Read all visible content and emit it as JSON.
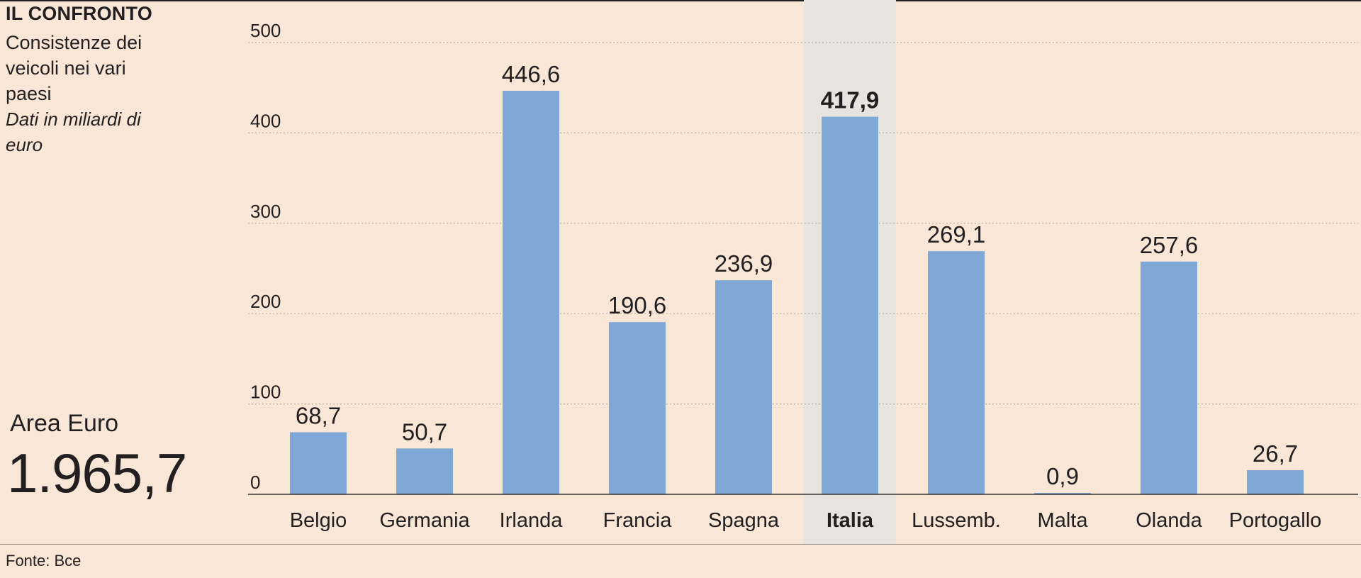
{
  "header": {
    "kicker": "IL CONFRONTO",
    "subtitle": "Consistenze dei veicoli nei vari paesi",
    "unit_note": "Dati in miliardi di euro"
  },
  "total": {
    "label": "Area Euro",
    "value": "1.965,7"
  },
  "source": "Fonte: Bce",
  "colors": {
    "bar": "#7fa8d6",
    "highlight_band": "#e7e3df",
    "grid": "#b9afa5",
    "axis": "#3a3431",
    "background": "#f8e6d6"
  },
  "chart_data": {
    "type": "bar",
    "title": "IL CONFRONTO",
    "categories": [
      "Belgio",
      "Germania",
      "Irlanda",
      "Francia",
      "Spagna",
      "Italia",
      "Lussemb.",
      "Malta",
      "Olanda",
      "Portogallo"
    ],
    "values": [
      68.7,
      50.7,
      446.6,
      190.6,
      236.9,
      417.9,
      269.1,
      0.9,
      257.6,
      26.7
    ],
    "value_labels": [
      "68,7",
      "50,7",
      "446,6",
      "190,6",
      "236,9",
      "417,9",
      "269,1",
      "0,9",
      "257,6",
      "26,7"
    ],
    "highlight": "Italia",
    "ylim": [
      0,
      500
    ],
    "yticks": [
      0,
      100,
      200,
      300,
      400,
      500
    ],
    "grid": true,
    "xlabel": "",
    "ylabel": ""
  }
}
